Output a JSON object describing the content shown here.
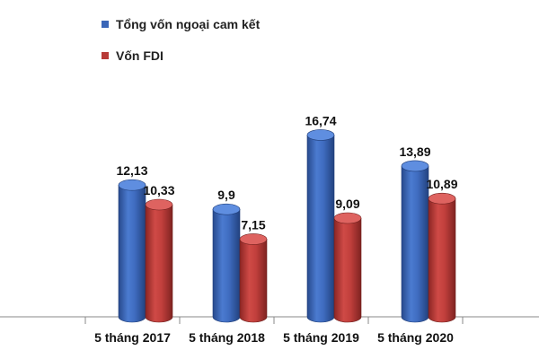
{
  "chart_data": {
    "type": "bar",
    "style": "3d-cylinder",
    "categories": [
      "5 tháng 2017",
      "5 tháng 2018",
      "5 tháng 2019",
      "5 tháng 2020"
    ],
    "series": [
      {
        "name": "Tổng vốn ngoại cam kết",
        "values": [
          12.13,
          9.9,
          16.74,
          13.89
        ],
        "labels": [
          "12,13",
          "9,9",
          "16,74",
          "13,89"
        ],
        "color": "#3a66b8"
      },
      {
        "name": "Vốn FDI",
        "values": [
          10.33,
          7.15,
          9.09,
          10.89
        ],
        "labels": [
          "10,33",
          "7,15",
          "9,09",
          "10,89"
        ],
        "color": "#b83a37"
      }
    ],
    "ylim": [
      0,
      18
    ],
    "legend_position": "top-left",
    "grid": false
  }
}
